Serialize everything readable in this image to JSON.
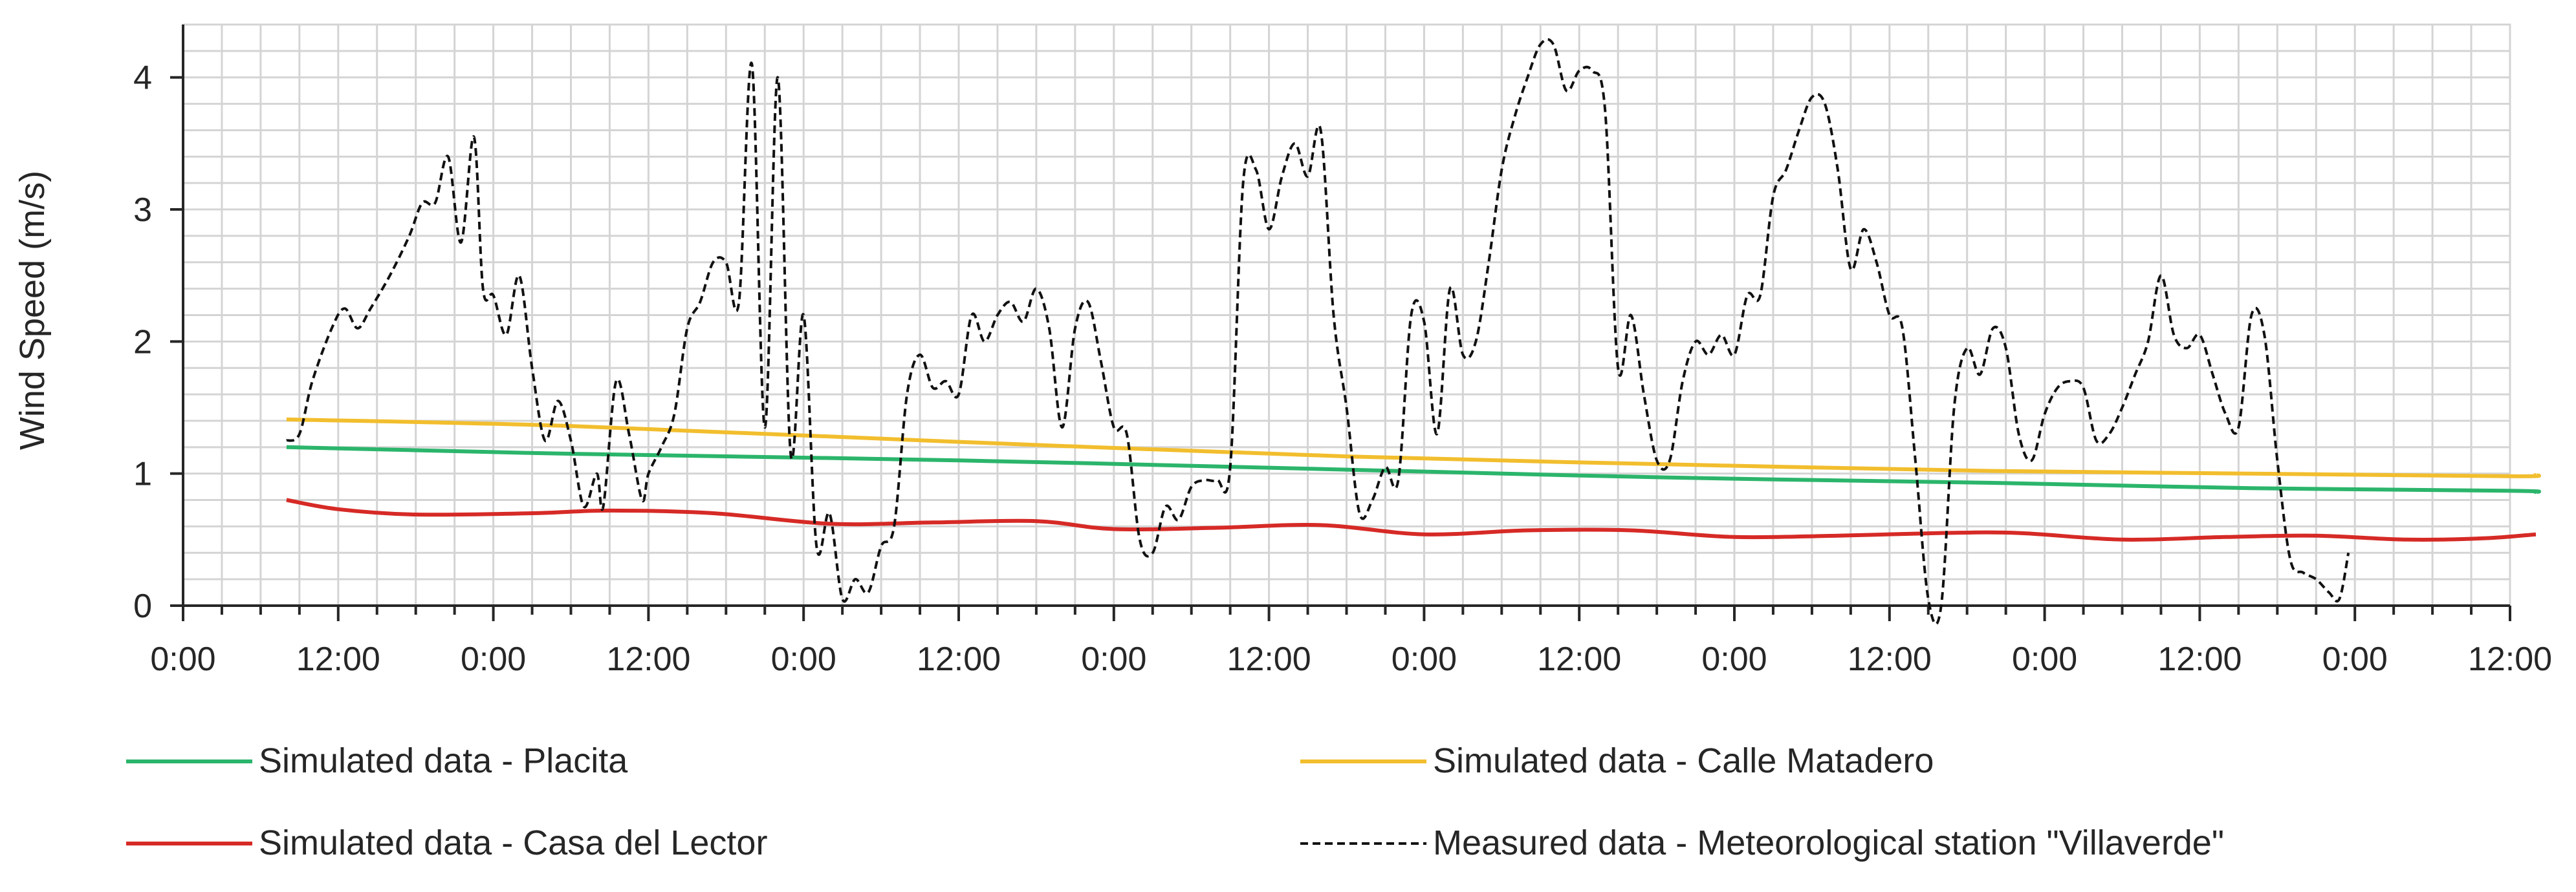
{
  "chart_data": {
    "type": "line",
    "ylabel": "Wind Speed (m/s)",
    "xlabel": "",
    "ylim": [
      0,
      4.4
    ],
    "xlim": [
      0,
      180
    ],
    "y_ticks": [
      0,
      1,
      2,
      3,
      4
    ],
    "x_ticks": [
      0,
      12,
      24,
      36,
      48,
      60,
      72,
      84,
      96,
      108,
      120,
      132,
      144,
      156,
      168,
      180
    ],
    "x_tick_labels": [
      "0:00",
      "12:00",
      "0:00",
      "12:00",
      "0:00",
      "12:00",
      "0:00",
      "12:00",
      "0:00",
      "12:00",
      "0:00",
      "12:00",
      "0:00",
      "12:00",
      "0:00",
      "12:00"
    ],
    "grid": true,
    "legend_position": "bottom",
    "series": [
      {
        "name": "Simulated data - Placita",
        "color": "#2bb56b",
        "style": "solid",
        "points": [
          [
            8,
            1.2
          ],
          [
            30,
            1.15
          ],
          [
            60,
            1.1
          ],
          [
            90,
            1.03
          ],
          [
            115,
            0.97
          ],
          [
            140,
            0.93
          ],
          [
            160,
            0.89
          ],
          [
            180,
            0.87
          ],
          [
            182,
            0.86
          ]
        ]
      },
      {
        "name": "Simulated data - Calle Matadero",
        "color": "#f2be2e",
        "style": "solid",
        "points": [
          [
            8,
            1.41
          ],
          [
            30,
            1.36
          ],
          [
            60,
            1.24
          ],
          [
            90,
            1.13
          ],
          [
            115,
            1.07
          ],
          [
            140,
            1.02
          ],
          [
            160,
            1.0
          ],
          [
            180,
            0.98
          ],
          [
            182,
            0.99
          ]
        ]
      },
      {
        "name": "Simulated data - Casa del Lector",
        "color": "#d62a26",
        "style": "solid",
        "points": [
          [
            8,
            0.8
          ],
          [
            12,
            0.73
          ],
          [
            18,
            0.69
          ],
          [
            27,
            0.7
          ],
          [
            33,
            0.72
          ],
          [
            41,
            0.7
          ],
          [
            50,
            0.62
          ],
          [
            58,
            0.63
          ],
          [
            66,
            0.64
          ],
          [
            72,
            0.58
          ],
          [
            80,
            0.59
          ],
          [
            88,
            0.61
          ],
          [
            96,
            0.54
          ],
          [
            104,
            0.57
          ],
          [
            112,
            0.57
          ],
          [
            120,
            0.52
          ],
          [
            128,
            0.53
          ],
          [
            136,
            0.55
          ],
          [
            142,
            0.55
          ],
          [
            150,
            0.5
          ],
          [
            158,
            0.52
          ],
          [
            165,
            0.53
          ],
          [
            172,
            0.5
          ],
          [
            178,
            0.51
          ],
          [
            182,
            0.54
          ]
        ]
      },
      {
        "name": "Measured data - Meteorological station \"Villaverde\"",
        "color": "#111111",
        "style": "dashed",
        "points": [
          [
            8,
            1.25
          ],
          [
            9,
            1.3
          ],
          [
            10,
            1.7
          ],
          [
            11.5,
            2.1
          ],
          [
            12.5,
            2.25
          ],
          [
            13.5,
            2.1
          ],
          [
            14.5,
            2.25
          ],
          [
            16,
            2.5
          ],
          [
            17.5,
            2.8
          ],
          [
            18.5,
            3.05
          ],
          [
            19.5,
            3.05
          ],
          [
            20.5,
            3.4
          ],
          [
            21.5,
            2.75
          ],
          [
            22.5,
            3.55
          ],
          [
            23.2,
            2.4
          ],
          [
            24,
            2.35
          ],
          [
            25,
            2.05
          ],
          [
            26,
            2.5
          ],
          [
            27,
            1.8
          ],
          [
            28,
            1.25
          ],
          [
            29,
            1.55
          ],
          [
            30,
            1.25
          ],
          [
            31,
            0.75
          ],
          [
            32,
            1.0
          ],
          [
            32.5,
            0.75
          ],
          [
            33.5,
            1.7
          ],
          [
            34.5,
            1.3
          ],
          [
            35.5,
            0.8
          ],
          [
            36,
            1.0
          ],
          [
            37,
            1.2
          ],
          [
            38,
            1.45
          ],
          [
            39,
            2.1
          ],
          [
            40,
            2.3
          ],
          [
            41,
            2.6
          ],
          [
            42,
            2.6
          ],
          [
            43,
            2.3
          ],
          [
            44,
            4.1
          ],
          [
            45,
            1.35
          ],
          [
            46,
            4.0
          ],
          [
            47,
            1.15
          ],
          [
            48,
            2.2
          ],
          [
            49,
            0.45
          ],
          [
            50,
            0.7
          ],
          [
            51,
            0.05
          ],
          [
            52,
            0.2
          ],
          [
            53,
            0.1
          ],
          [
            54,
            0.45
          ],
          [
            55,
            0.6
          ],
          [
            56,
            1.6
          ],
          [
            57,
            1.9
          ],
          [
            58,
            1.65
          ],
          [
            59,
            1.7
          ],
          [
            60,
            1.6
          ],
          [
            61,
            2.2
          ],
          [
            62,
            2.0
          ],
          [
            63,
            2.2
          ],
          [
            64,
            2.3
          ],
          [
            65,
            2.15
          ],
          [
            66,
            2.4
          ],
          [
            67,
            2.1
          ],
          [
            68,
            1.35
          ],
          [
            69,
            2.1
          ],
          [
            70,
            2.3
          ],
          [
            71,
            1.85
          ],
          [
            72,
            1.35
          ],
          [
            73,
            1.3
          ],
          [
            74,
            0.5
          ],
          [
            75,
            0.4
          ],
          [
            76,
            0.75
          ],
          [
            77,
            0.65
          ],
          [
            78,
            0.9
          ],
          [
            79,
            0.95
          ],
          [
            80,
            0.95
          ],
          [
            81,
            1.05
          ],
          [
            82,
            3.2
          ],
          [
            83,
            3.3
          ],
          [
            84,
            2.85
          ],
          [
            85,
            3.25
          ],
          [
            86,
            3.5
          ],
          [
            87,
            3.25
          ],
          [
            88,
            3.6
          ],
          [
            89,
            2.2
          ],
          [
            90,
            1.5
          ],
          [
            91,
            0.7
          ],
          [
            92,
            0.8
          ],
          [
            93,
            1.05
          ],
          [
            94,
            0.95
          ],
          [
            95,
            2.2
          ],
          [
            96,
            2.15
          ],
          [
            97,
            1.3
          ],
          [
            98,
            2.4
          ],
          [
            99,
            1.9
          ],
          [
            100,
            2.0
          ],
          [
            101,
            2.6
          ],
          [
            102,
            3.3
          ],
          [
            103,
            3.7
          ],
          [
            104,
            4.0
          ],
          [
            105,
            4.25
          ],
          [
            106,
            4.25
          ],
          [
            107,
            3.9
          ],
          [
            108,
            4.05
          ],
          [
            109,
            4.05
          ],
          [
            110,
            3.75
          ],
          [
            111,
            1.8
          ],
          [
            112,
            2.2
          ],
          [
            113,
            1.6
          ],
          [
            114,
            1.1
          ],
          [
            115,
            1.1
          ],
          [
            116,
            1.7
          ],
          [
            117,
            2.0
          ],
          [
            118,
            1.9
          ],
          [
            119,
            2.05
          ],
          [
            120,
            1.9
          ],
          [
            121,
            2.35
          ],
          [
            122,
            2.35
          ],
          [
            123,
            3.1
          ],
          [
            124,
            3.3
          ],
          [
            125,
            3.6
          ],
          [
            126,
            3.85
          ],
          [
            127,
            3.8
          ],
          [
            128,
            3.3
          ],
          [
            129,
            2.55
          ],
          [
            130,
            2.85
          ],
          [
            131,
            2.6
          ],
          [
            132,
            2.2
          ],
          [
            133,
            2.1
          ],
          [
            134,
            1.1
          ],
          [
            135,
            0.05
          ],
          [
            136,
            0.0
          ],
          [
            137,
            1.5
          ],
          [
            138,
            1.95
          ],
          [
            139,
            1.75
          ],
          [
            140,
            2.1
          ],
          [
            141,
            1.95
          ],
          [
            142,
            1.3
          ],
          [
            143,
            1.1
          ],
          [
            144,
            1.45
          ],
          [
            145,
            1.65
          ],
          [
            146,
            1.7
          ],
          [
            147,
            1.65
          ],
          [
            148,
            1.25
          ],
          [
            149,
            1.3
          ],
          [
            150,
            1.5
          ],
          [
            151,
            1.75
          ],
          [
            152,
            2.0
          ],
          [
            153,
            2.5
          ],
          [
            154,
            2.05
          ],
          [
            155,
            1.95
          ],
          [
            156,
            2.05
          ],
          [
            157,
            1.75
          ],
          [
            158,
            1.45
          ],
          [
            159,
            1.35
          ],
          [
            160,
            2.2
          ],
          [
            161,
            2.05
          ],
          [
            162,
            1.1
          ],
          [
            163,
            0.35
          ],
          [
            164,
            0.25
          ],
          [
            165,
            0.2
          ],
          [
            166,
            0.1
          ],
          [
            166.8,
            0.05
          ],
          [
            167.5,
            0.4
          ]
        ]
      }
    ]
  }
}
